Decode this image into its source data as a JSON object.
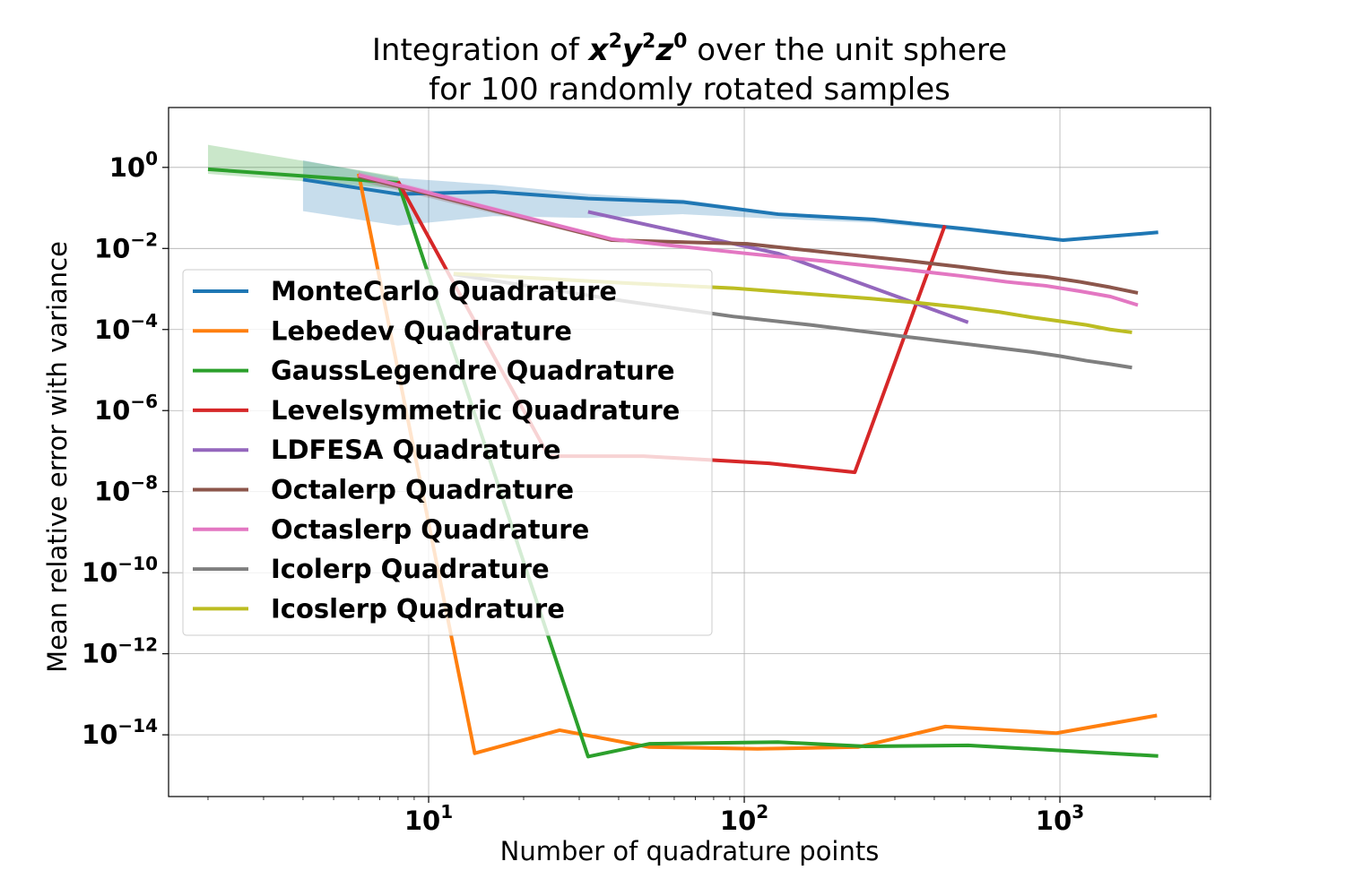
{
  "chart_data": {
    "type": "line",
    "title": {
      "line1_prefix": "Integration of ",
      "line1_math": [
        "x",
        "2",
        "y",
        "2",
        "z",
        "0"
      ],
      "line1_suffix": " over the unit sphere",
      "line2": "for 100 randomly rotated samples"
    },
    "xlabel": "Number of quadrature points",
    "ylabel": "Mean relative error with variance",
    "xscale": "log",
    "yscale": "log",
    "xlim": [
      1.5,
      3000
    ],
    "ylim": [
      3e-16,
      30
    ],
    "xticks": [
      {
        "base": "10",
        "exp": "1",
        "value": 10
      },
      {
        "base": "10",
        "exp": "2",
        "value": 100
      },
      {
        "base": "10",
        "exp": "3",
        "value": 1000
      }
    ],
    "yticks": [
      {
        "base": "10",
        "exp": "0",
        "value": 1
      },
      {
        "base": "10",
        "exp": "−2",
        "value": 0.01
      },
      {
        "base": "10",
        "exp": "−4",
        "value": 0.0001
      },
      {
        "base": "10",
        "exp": "−6",
        "value": 1e-06
      },
      {
        "base": "10",
        "exp": "−8",
        "value": 1e-08
      },
      {
        "base": "10",
        "exp": "−10",
        "value": 1e-10
      },
      {
        "base": "10",
        "exp": "−12",
        "value": 1e-12
      },
      {
        "base": "10",
        "exp": "−14",
        "value": 1e-14
      }
    ],
    "grid": true,
    "legend_position": "center-left",
    "series": [
      {
        "name": "MonteCarlo Quadrature",
        "color": "#1f77b4",
        "x": [
          4,
          8,
          16,
          32,
          64,
          128,
          256,
          512,
          1024,
          2048
        ],
        "y": [
          0.5,
          0.22,
          0.25,
          0.17,
          0.14,
          0.07,
          0.052,
          0.03,
          0.016,
          0.025
        ],
        "band": [
          [
            3,
            6
          ],
          [
            2.5,
            6
          ],
          [
            1.5,
            4
          ],
          [
            1.3,
            3
          ],
          [
            1.15,
            2
          ],
          [
            1.1,
            1.3
          ],
          [
            1.05,
            1.2
          ],
          [
            1.05,
            1.15
          ],
          [
            1.05,
            1.1
          ],
          [
            1.05,
            1.1
          ]
        ]
      },
      {
        "name": "Lebedev Quadrature",
        "color": "#ff7f0e",
        "x": [
          6,
          14,
          26,
          50,
          110,
          230,
          434,
          974,
          2030
        ],
        "y": [
          0.7,
          3.5e-15,
          1.3e-14,
          5e-15,
          4.5e-15,
          5e-15,
          1.6e-14,
          1.1e-14,
          3e-14
        ],
        "band": [
          [
            1.3,
            1.3
          ],
          [
            1.1,
            1.1
          ],
          [
            1.1,
            1.1
          ],
          [
            1.1,
            1.1
          ],
          [
            1.1,
            1.1
          ],
          [
            1.1,
            1.1
          ],
          [
            1.1,
            1.1
          ],
          [
            1.1,
            1.1
          ],
          [
            1.1,
            1.1
          ]
        ]
      },
      {
        "name": "GaussLegendre Quadrature",
        "color": "#2ca02c",
        "x": [
          2,
          8,
          32,
          50,
          128,
          242,
          512,
          2048
        ],
        "y": [
          0.9,
          0.42,
          2.9e-15,
          6e-15,
          6.6e-15,
          5.2e-15,
          5.5e-15,
          3e-15
        ],
        "band": [
          [
            4,
            1.3
          ],
          [
            1.4,
            1.4
          ],
          [
            1.1,
            1.1
          ],
          [
            1.1,
            1.1
          ],
          [
            1.1,
            1.1
          ],
          [
            1.1,
            1.1
          ],
          [
            1.1,
            1.1
          ],
          [
            1.1,
            1.1
          ]
        ]
      },
      {
        "name": "Levelsymmetric Quadrature",
        "color": "#d62728",
        "x": [
          8,
          24,
          48,
          120,
          224,
          432
        ],
        "y": [
          0.45,
          7.5e-08,
          7.5e-08,
          5e-08,
          3e-08,
          0.037
        ],
        "band": [
          [
            1.1,
            1.1
          ],
          [
            1.1,
            1.1
          ],
          [
            1.1,
            1.1
          ],
          [
            1.1,
            1.1
          ],
          [
            1.1,
            1.1
          ],
          [
            1.1,
            1.1
          ]
        ]
      },
      {
        "name": "LDFESA Quadrature",
        "color": "#9467bd",
        "x": [
          32,
          128,
          512
        ],
        "y": [
          0.08,
          0.0075,
          0.00015
        ],
        "band": [
          [
            1.1,
            1.1
          ],
          [
            1.1,
            1.1
          ],
          [
            1.1,
            1.1
          ]
        ]
      },
      {
        "name": "Octalerp Quadrature",
        "color": "#8c564b",
        "x": [
          6,
          38,
          102,
          198,
          326,
          486,
          678,
          902,
          1158,
          1446,
          1766
        ],
        "y": [
          0.6,
          0.016,
          0.013,
          0.0075,
          0.005,
          0.0035,
          0.0025,
          0.002,
          0.0015,
          0.0011,
          0.0008
        ],
        "band": [
          [
            1.2,
            1.3
          ],
          [
            1.1,
            1.1
          ],
          [
            1.1,
            1.1
          ],
          [
            1.1,
            1.1
          ],
          [
            1.1,
            1.1
          ],
          [
            1.1,
            1.1
          ],
          [
            1.1,
            1.1
          ],
          [
            1.1,
            1.1
          ],
          [
            1.1,
            1.1
          ],
          [
            1.1,
            1.1
          ],
          [
            1.1,
            1.1
          ]
        ]
      },
      {
        "name": "Octaslerp Quadrature",
        "color": "#e377c2",
        "x": [
          6,
          38,
          102,
          198,
          326,
          486,
          678,
          902,
          1158,
          1446,
          1766
        ],
        "y": [
          0.65,
          0.017,
          0.0075,
          0.0045,
          0.003,
          0.0021,
          0.0015,
          0.0012,
          0.00088,
          0.00065,
          0.0004
        ],
        "band": [
          [
            1.2,
            1.3
          ],
          [
            1.1,
            1.1
          ],
          [
            1.1,
            1.1
          ],
          [
            1.1,
            1.1
          ],
          [
            1.1,
            1.1
          ],
          [
            1.1,
            1.1
          ],
          [
            1.1,
            1.1
          ],
          [
            1.1,
            1.1
          ],
          [
            1.1,
            1.1
          ],
          [
            1.1,
            1.1
          ],
          [
            1.1,
            1.1
          ]
        ]
      },
      {
        "name": "Icolerp Quadrature",
        "color": "#7f7f7f",
        "x": [
          12,
          42,
          92,
          162,
          252,
          362,
          492,
          642,
          812,
          1002,
          1212,
          1442,
          1692
        ],
        "y": [
          0.0023,
          0.0005,
          0.00021,
          0.00013,
          8.5e-05,
          6e-05,
          4.5e-05,
          3.5e-05,
          2.8e-05,
          2.2e-05,
          1.7e-05,
          1.4e-05,
          1.15e-05
        ],
        "band": [
          [
            1.1,
            1.1
          ],
          [
            1.1,
            1.1
          ],
          [
            1.1,
            1.1
          ],
          [
            1.1,
            1.1
          ],
          [
            1.1,
            1.1
          ],
          [
            1.1,
            1.1
          ],
          [
            1.1,
            1.1
          ],
          [
            1.1,
            1.1
          ],
          [
            1.1,
            1.1
          ],
          [
            1.1,
            1.1
          ],
          [
            1.1,
            1.1
          ],
          [
            1.1,
            1.1
          ],
          [
            1.1,
            1.1
          ]
        ]
      },
      {
        "name": "Icoslerp Quadrature",
        "color": "#bcbd22",
        "x": [
          12,
          42,
          92,
          162,
          252,
          362,
          492,
          642,
          812,
          1002,
          1212,
          1442,
          1692
        ],
        "y": [
          0.0024,
          0.0014,
          0.00105,
          0.00075,
          0.00058,
          0.00045,
          0.00035,
          0.00027,
          0.0002,
          0.00016,
          0.00013,
          0.0001,
          8.5e-05
        ],
        "band": [
          [
            1.1,
            1.1
          ],
          [
            1.1,
            1.1
          ],
          [
            1.1,
            1.1
          ],
          [
            1.1,
            1.1
          ],
          [
            1.1,
            1.1
          ],
          [
            1.1,
            1.1
          ],
          [
            1.1,
            1.1
          ],
          [
            1.1,
            1.1
          ],
          [
            1.1,
            1.1
          ],
          [
            1.1,
            1.1
          ],
          [
            1.1,
            1.1
          ],
          [
            1.1,
            1.1
          ],
          [
            1.1,
            1.1
          ]
        ]
      }
    ]
  }
}
